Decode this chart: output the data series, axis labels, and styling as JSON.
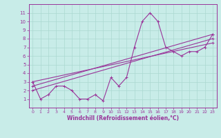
{
  "xlabel": "Windchill (Refroidissement éolien,°C)",
  "xlim": [
    -0.5,
    23.5
  ],
  "ylim": [
    0,
    12
  ],
  "xticks": [
    0,
    1,
    2,
    3,
    4,
    5,
    6,
    7,
    8,
    9,
    10,
    11,
    12,
    13,
    14,
    15,
    16,
    17,
    18,
    19,
    20,
    21,
    22,
    23
  ],
  "yticks": [
    1,
    2,
    3,
    4,
    5,
    6,
    7,
    8,
    9,
    10,
    11
  ],
  "bg_color": "#c8ece8",
  "grid_color": "#aad8d0",
  "line_color": "#993399",
  "line1_x": [
    0,
    1,
    2,
    3,
    4,
    5,
    6,
    7,
    8,
    9,
    10,
    11,
    12,
    13,
    14,
    15,
    16,
    17,
    18,
    19,
    20,
    21,
    22,
    23
  ],
  "line1_y": [
    3.0,
    1.0,
    1.5,
    2.5,
    2.5,
    2.0,
    1.0,
    1.0,
    1.5,
    0.8,
    3.5,
    2.5,
    3.5,
    7.0,
    10.0,
    11.0,
    10.0,
    7.0,
    6.5,
    6.0,
    6.5,
    6.5,
    7.0,
    8.5
  ],
  "line2_x": [
    0,
    23
  ],
  "line2_y": [
    2.0,
    8.0
  ],
  "line3_x": [
    0,
    23
  ],
  "line3_y": [
    2.5,
    8.5
  ],
  "line4_x": [
    0,
    23
  ],
  "line4_y": [
    3.0,
    7.5
  ]
}
